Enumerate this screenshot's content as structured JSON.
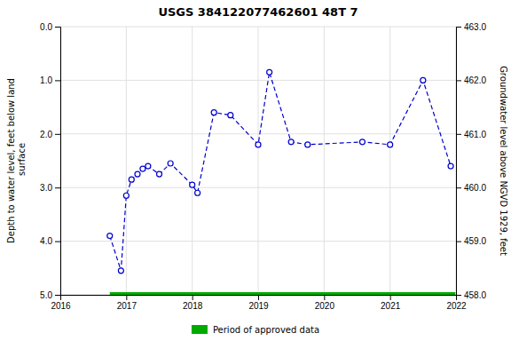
{
  "chart_data": {
    "type": "line",
    "title": "USGS 384122077462601 48T  7",
    "ylabel": "Depth to water level, feet below land\n surface",
    "y2label": "Groundwater level above NGVD 1929, feet",
    "series": [
      {
        "color": "#0000cc",
        "marker": "circle",
        "line_style": "dashed",
        "x": [
          2016.75,
          2016.92,
          2017.0,
          2017.08,
          2017.17,
          2017.25,
          2017.33,
          2017.5,
          2017.67,
          2018.0,
          2018.08,
          2018.33,
          2018.58,
          2019.0,
          2019.17,
          2019.5,
          2019.75,
          2020.58,
          2021.0,
          2021.5,
          2021.92
        ],
        "values": [
          3.9,
          4.55,
          3.15,
          2.85,
          2.75,
          2.65,
          2.6,
          2.75,
          2.55,
          2.95,
          3.1,
          1.6,
          1.65,
          2.2,
          0.85,
          2.15,
          2.2,
          2.15,
          2.2,
          1.0,
          2.6
        ]
      },
      {
        "name": "Period of approved data",
        "color": "#00aa00",
        "line_style": "solid",
        "x": [
          2016.75,
          2021.99
        ],
        "values": [
          5.0,
          5.0
        ]
      }
    ],
    "xlim": [
      2016.0,
      2022.0
    ],
    "xticks": [
      2016,
      2017,
      2018,
      2019,
      2020,
      2021,
      2022
    ],
    "ylim": [
      5.0,
      0.0
    ],
    "yticks": [
      {
        "value": 0.0,
        "label": "0.0"
      },
      {
        "value": 1.0,
        "label": "1.0"
      },
      {
        "value": 2.0,
        "label": "2.0"
      },
      {
        "value": 3.0,
        "label": "3.0"
      },
      {
        "value": 4.0,
        "label": "4.0"
      },
      {
        "value": 5.0,
        "label": "5.0"
      }
    ],
    "y2lim": [
      458.0,
      463.0
    ],
    "y2ticks": [
      {
        "value": 458.0,
        "label": "458.0"
      },
      {
        "value": 459.0,
        "label": "459.0"
      },
      {
        "value": 460.0,
        "label": "460.0"
      },
      {
        "value": 461.0,
        "label": "461.0"
      },
      {
        "value": 462.0,
        "label": "462.0"
      },
      {
        "value": 463.0,
        "label": "463.0"
      }
    ],
    "grid": true,
    "legend": "bottom"
  }
}
